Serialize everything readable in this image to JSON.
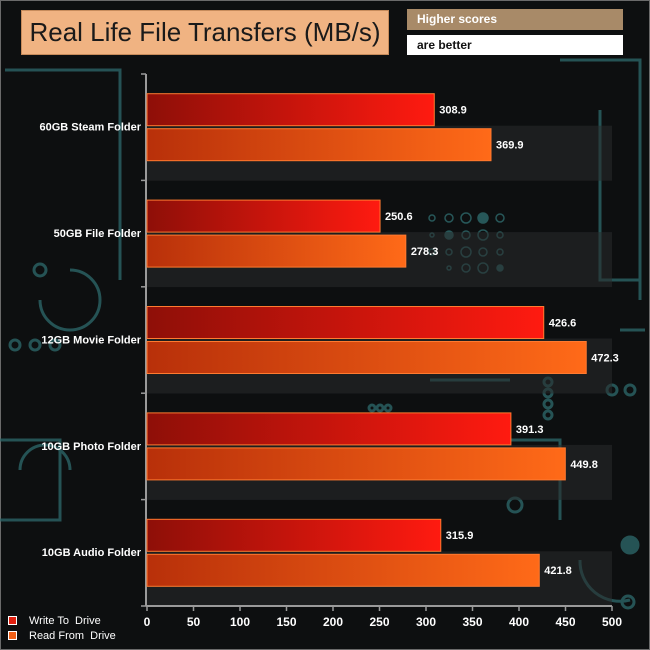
{
  "chart_data": {
    "type": "bar",
    "orientation": "horizontal",
    "title": "Real Life File Transfers (MB/s)",
    "note_line1": "Higher scores",
    "note_line2": "are better",
    "categories": [
      "60GB Steam Folder",
      "50GB File Folder",
      "12GB Movie Folder",
      "10GB Photo Folder",
      "10GB Audio Folder"
    ],
    "series": [
      {
        "name": "Write To  Drive",
        "values": [
          308.9,
          250.6,
          426.6,
          391.3,
          315.9
        ]
      },
      {
        "name": "Read From  Drive",
        "values": [
          369.9,
          278.3,
          472.3,
          449.8,
          421.8
        ]
      }
    ],
    "xlim": [
      0,
      500
    ],
    "xticks": [
      0,
      50,
      100,
      150,
      200,
      250,
      300,
      350,
      400,
      450,
      500
    ],
    "colors": {
      "write_dark": "#8e0f08",
      "write_light": "#ff1a10",
      "read_dark": "#b8300a",
      "read_light": "#ff6a18",
      "bar_border": "#ff7a30",
      "axis": "#9a9a9a",
      "band": "#2a2b2c",
      "circuit": "#2e6a6c"
    }
  }
}
